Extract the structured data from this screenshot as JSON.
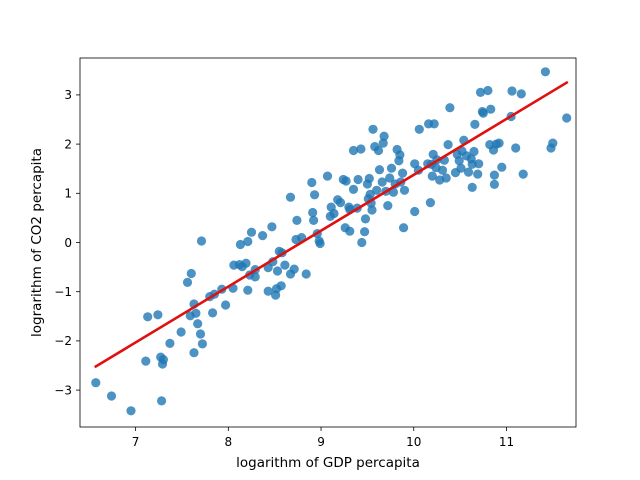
{
  "chart_data": {
    "type": "scatter",
    "title": "",
    "xlabel": "logarithm of GDP percapita",
    "ylabel": "lograrithm of CO2 percapita",
    "xlim": [
      6.4,
      11.75
    ],
    "ylim": [
      -3.75,
      3.75
    ],
    "xticks": [
      7,
      8,
      9,
      10,
      11
    ],
    "yticks": [
      -3,
      -2,
      -1,
      0,
      1,
      2,
      3
    ],
    "grid": false,
    "legend": "none",
    "colors": {
      "points": "#1f77b4",
      "fit_line": "#e0100f"
    },
    "series": [
      {
        "points": [
          [
            6.57,
            -2.85
          ],
          [
            6.74,
            -3.12
          ],
          [
            6.95,
            -3.42
          ],
          [
            7.11,
            -2.41
          ],
          [
            7.13,
            -1.51
          ],
          [
            7.24,
            -1.47
          ],
          [
            7.27,
            -2.33
          ],
          [
            7.3,
            -2.38
          ],
          [
            7.29,
            -2.47
          ],
          [
            7.28,
            -3.22
          ],
          [
            7.37,
            -2.05
          ],
          [
            7.49,
            -1.82
          ],
          [
            7.56,
            -0.81
          ],
          [
            7.6,
            -0.63
          ],
          [
            7.59,
            -1.49
          ],
          [
            7.63,
            -1.25
          ],
          [
            7.65,
            -1.44
          ],
          [
            7.63,
            -2.24
          ],
          [
            7.67,
            -1.65
          ],
          [
            7.7,
            -1.86
          ],
          [
            7.72,
            -2.06
          ],
          [
            7.71,
            0.03
          ],
          [
            7.8,
            -1.1
          ],
          [
            7.83,
            -1.43
          ],
          [
            7.85,
            -1.05
          ],
          [
            7.93,
            -0.95
          ],
          [
            7.97,
            -1.27
          ],
          [
            8.05,
            -0.93
          ],
          [
            8.06,
            -0.46
          ],
          [
            8.12,
            -0.45
          ],
          [
            8.13,
            -0.04
          ],
          [
            8.15,
            -0.49
          ],
          [
            8.19,
            -0.42
          ],
          [
            8.21,
            0.02
          ],
          [
            8.21,
            -0.97
          ],
          [
            8.23,
            -0.66
          ],
          [
            8.25,
            0.21
          ],
          [
            8.29,
            -0.55
          ],
          [
            8.29,
            -0.7
          ],
          [
            8.37,
            0.14
          ],
          [
            8.43,
            -0.51
          ],
          [
            8.43,
            -0.99
          ],
          [
            8.47,
            0.32
          ],
          [
            8.48,
            -0.39
          ],
          [
            8.51,
            -1.07
          ],
          [
            8.52,
            -0.94
          ],
          [
            8.53,
            -0.58
          ],
          [
            8.55,
            -0.18
          ],
          [
            8.57,
            -0.88
          ],
          [
            8.58,
            -0.21
          ],
          [
            8.61,
            -0.46
          ],
          [
            8.67,
            0.92
          ],
          [
            8.67,
            -0.64
          ],
          [
            8.71,
            -0.54
          ],
          [
            8.73,
            0.06
          ],
          [
            8.74,
            0.45
          ],
          [
            8.79,
            0.1
          ],
          [
            8.84,
            -0.64
          ],
          [
            8.9,
            1.22
          ],
          [
            8.91,
            0.61
          ],
          [
            8.92,
            0.45
          ],
          [
            8.93,
            0.97
          ],
          [
            8.96,
            0.18
          ],
          [
            8.98,
            0.03
          ],
          [
            8.99,
            -0.02
          ],
          [
            9.07,
            1.35
          ],
          [
            9.1,
            0.53
          ],
          [
            9.11,
            0.72
          ],
          [
            9.14,
            0.59
          ],
          [
            9.18,
            0.87
          ],
          [
            9.21,
            0.81
          ],
          [
            9.24,
            1.28
          ],
          [
            9.26,
            0.3
          ],
          [
            9.27,
            1.25
          ],
          [
            9.3,
            0.72
          ],
          [
            9.31,
            0.23
          ],
          [
            9.31,
            0.67
          ],
          [
            9.35,
            1.87
          ],
          [
            9.35,
            1.08
          ],
          [
            9.39,
            0.7
          ],
          [
            9.4,
            1.28
          ],
          [
            9.43,
            1.9
          ],
          [
            9.44,
            0.0
          ],
          [
            9.47,
            0.22
          ],
          [
            9.48,
            0.48
          ],
          [
            9.5,
            1.19
          ],
          [
            9.51,
            0.89
          ],
          [
            9.52,
            1.3
          ],
          [
            9.53,
            0.98
          ],
          [
            9.54,
            0.8
          ],
          [
            9.55,
            0.66
          ],
          [
            9.56,
            2.3
          ],
          [
            9.58,
            1.95
          ],
          [
            9.6,
            1.06
          ],
          [
            9.62,
            1.87
          ],
          [
            9.63,
            1.48
          ],
          [
            9.66,
            1.23
          ],
          [
            9.67,
            2.02
          ],
          [
            9.68,
            2.16
          ],
          [
            9.7,
            1.04
          ],
          [
            9.72,
            0.75
          ],
          [
            9.74,
            1.31
          ],
          [
            9.76,
            1.51
          ],
          [
            9.78,
            1.02
          ],
          [
            9.8,
            1.19
          ],
          [
            9.82,
            1.89
          ],
          [
            9.84,
            1.66
          ],
          [
            9.85,
            1.78
          ],
          [
            9.86,
            1.23
          ],
          [
            9.88,
            1.41
          ],
          [
            9.89,
            0.3
          ],
          [
            9.9,
            1.06
          ],
          [
            10.01,
            0.63
          ],
          [
            10.01,
            1.6
          ],
          [
            10.05,
            1.47
          ],
          [
            10.06,
            2.3
          ],
          [
            10.15,
            1.6
          ],
          [
            10.16,
            2.41
          ],
          [
            10.18,
            0.81
          ],
          [
            10.19,
            1.59
          ],
          [
            10.2,
            1.35
          ],
          [
            10.21,
            1.79
          ],
          [
            10.22,
            2.41
          ],
          [
            10.24,
            1.52
          ],
          [
            10.25,
            1.68
          ],
          [
            10.28,
            1.27
          ],
          [
            10.31,
            1.47
          ],
          [
            10.33,
            1.67
          ],
          [
            10.35,
            1.31
          ],
          [
            10.37,
            1.99
          ],
          [
            10.39,
            2.74
          ],
          [
            10.45,
            1.42
          ],
          [
            10.47,
            1.79
          ],
          [
            10.49,
            1.66
          ],
          [
            10.51,
            1.51
          ],
          [
            10.52,
            1.86
          ],
          [
            10.54,
            2.08
          ],
          [
            10.57,
            1.76
          ],
          [
            10.59,
            1.43
          ],
          [
            10.62,
            1.7
          ],
          [
            10.63,
            1.59
          ],
          [
            10.63,
            1.12
          ],
          [
            10.65,
            1.85
          ],
          [
            10.66,
            2.4
          ],
          [
            10.69,
            1.39
          ],
          [
            10.7,
            1.6
          ],
          [
            10.72,
            3.05
          ],
          [
            10.74,
            2.66
          ],
          [
            10.75,
            2.63
          ],
          [
            10.8,
            3.09
          ],
          [
            10.82,
            1.99
          ],
          [
            10.83,
            2.71
          ],
          [
            10.86,
            1.88
          ],
          [
            10.87,
            1.37
          ],
          [
            10.87,
            1.18
          ],
          [
            10.89,
            2.0
          ],
          [
            10.92,
            2.02
          ],
          [
            10.95,
            1.53
          ],
          [
            11.05,
            2.56
          ],
          [
            11.06,
            3.08
          ],
          [
            11.1,
            1.92
          ],
          [
            11.16,
            3.02
          ],
          [
            11.18,
            1.39
          ],
          [
            11.42,
            3.47
          ],
          [
            11.48,
            1.92
          ],
          [
            11.5,
            2.02
          ],
          [
            11.65,
            2.53
          ]
        ]
      }
    ],
    "fit_line": {
      "x": [
        6.57,
        11.65
      ],
      "y": [
        -2.52,
        3.25
      ]
    }
  }
}
